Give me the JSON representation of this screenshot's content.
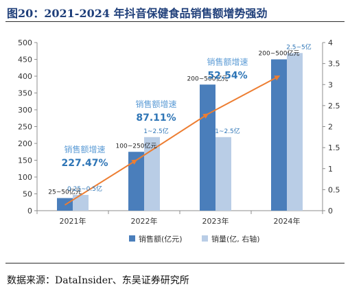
{
  "title": "图20：2021-2024 年抖音保健食品销售额增势强劲",
  "source": "数据来源：DataInsider、东吴证券研究所",
  "chart_data": {
    "type": "bar",
    "categories": [
      "2021年",
      "2022年",
      "2023年",
      "2024年"
    ],
    "series": [
      {
        "name": "销售额(亿元)",
        "axis": "left",
        "color": "#4a7ebb",
        "values": [
          37.5,
          175,
          375,
          450
        ],
        "labels": [
          "25~50亿元",
          "100~250亿元",
          "200~500亿元",
          "200~500亿元"
        ]
      },
      {
        "name": "销量(亿, 右轴)",
        "axis": "right",
        "color": "#b9cde6",
        "values": [
          0.375,
          1.75,
          1.75,
          3.75
        ],
        "labels": [
          "0.25~0.5亿",
          "1~2.5亿",
          "1~2.5亿",
          "2.5~5亿"
        ]
      }
    ],
    "trend_line": {
      "color": "#ed7d31",
      "values": [
        17,
        150,
        287,
        400
      ]
    },
    "growth_annotations": [
      {
        "caption": "销售额增速",
        "value": "227.47%"
      },
      {
        "caption": "销售额增速",
        "value": "87.11%"
      },
      {
        "caption": "销售额增速",
        "value": "52.54%"
      }
    ],
    "y_left": {
      "min": 0,
      "max": 500,
      "step": 50
    },
    "y_right": {
      "min": 0,
      "max": 4,
      "step": 0.5
    },
    "legend_position": "bottom-center",
    "grid": false
  }
}
